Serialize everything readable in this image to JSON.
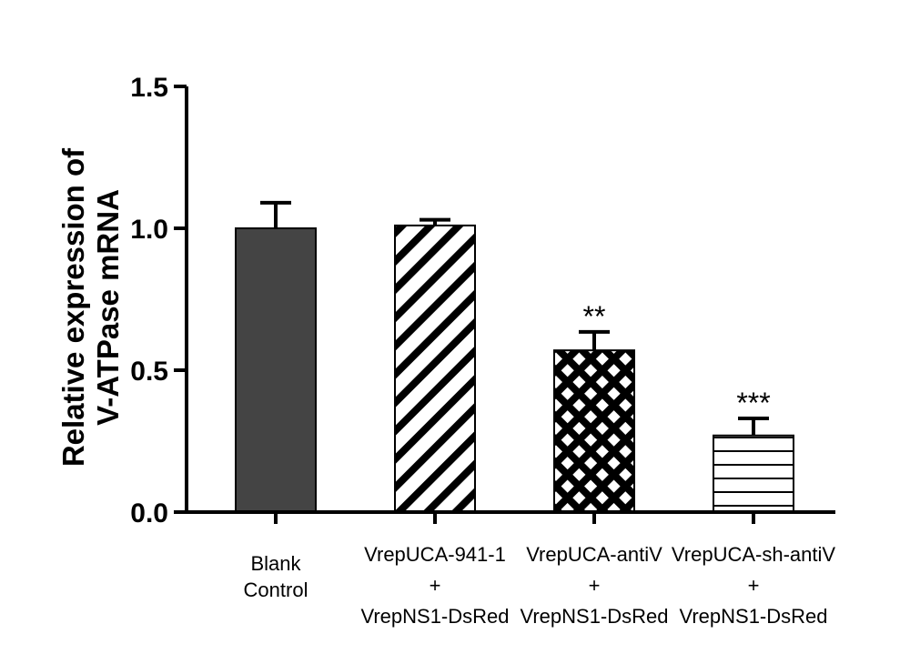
{
  "chart_data": {
    "type": "bar",
    "title": "",
    "xlabel": "",
    "ylabel": [
      "Relative expression of",
      "V-ATPase mRNA"
    ],
    "ylim": [
      0,
      1.5
    ],
    "yticks": [
      "0.0",
      "0.5",
      "1.0",
      "1.5"
    ],
    "yticks_values": [
      0,
      0.5,
      1.0,
      1.5
    ],
    "categories": [
      [
        "Blank",
        "Control"
      ],
      [
        "VrepUCA-941-1",
        "+",
        "VrepNS1-DsRed"
      ],
      [
        "VrepUCA-antiV",
        "+",
        "VrepNS1-DsRed"
      ],
      [
        "VrepUCA-sh-antiV",
        "+",
        "VrepNS1-DsRed"
      ]
    ],
    "values": [
      1.0,
      1.01,
      0.57,
      0.27
    ],
    "errors": [
      0.09,
      0.02,
      0.065,
      0.06
    ],
    "significance": [
      "",
      "",
      "**",
      "***"
    ],
    "patterns": [
      "solid",
      "diagonal",
      "crosshatch",
      "horizontal"
    ],
    "colors": {
      "bar_fill": "#444444",
      "line": "#000000",
      "background": "#ffffff"
    }
  }
}
